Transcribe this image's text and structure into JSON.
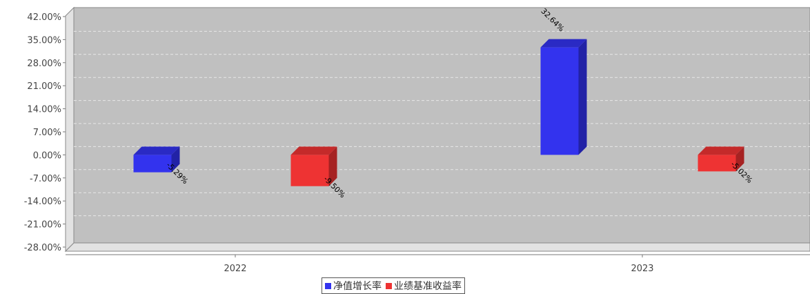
{
  "chart_data": {
    "type": "bar",
    "categories": [
      "2022",
      "2023"
    ],
    "series": [
      {
        "name": "净值增长率",
        "values": [
          -5.29,
          32.64
        ],
        "labels": [
          "-5.29%",
          "32.64%"
        ],
        "color": "#3333ee"
      },
      {
        "name": "业绩基准收益率",
        "values": [
          -9.5,
          -5.02
        ],
        "labels": [
          "-9.50%",
          "-5.02%"
        ],
        "color": "#ee3333"
      }
    ],
    "y_ticks": [
      "42.00%",
      "35.00%",
      "28.00%",
      "21.00%",
      "14.00%",
      "7.00%",
      "0.00%",
      "-7.00%",
      "-14.00%",
      "-21.00%",
      "-28.00%"
    ],
    "ylim": [
      -28,
      42
    ],
    "grid": true,
    "legend_position": "bottom-center",
    "title": "",
    "xlabel": "",
    "ylabel": ""
  }
}
